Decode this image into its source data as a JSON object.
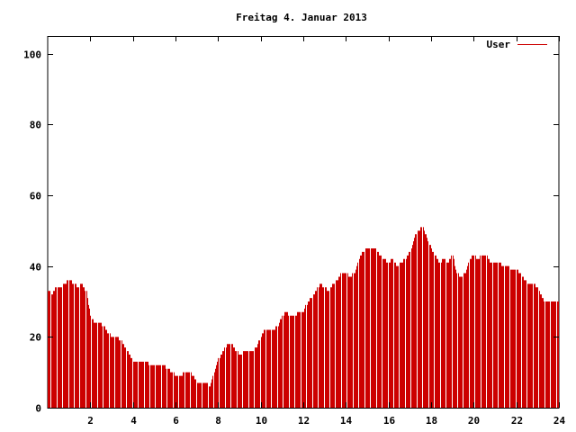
{
  "chart_data": {
    "type": "bar",
    "title": "Freitag 4. Januar 2013",
    "xlabel": "",
    "ylabel": "",
    "xlim": [
      0,
      24
    ],
    "ylim": [
      0,
      105
    ],
    "x_ticks": [
      2,
      4,
      6,
      8,
      10,
      12,
      14,
      16,
      18,
      20,
      22,
      24
    ],
    "y_ticks": [
      0,
      20,
      40,
      60,
      80,
      100
    ],
    "grid": false,
    "legend_position": "top-right",
    "series": [
      {
        "name": "User",
        "color": "#cc0000",
        "points": [
          [
            0.0,
            33
          ],
          [
            0.2,
            32
          ],
          [
            0.4,
            34
          ],
          [
            0.6,
            34
          ],
          [
            0.8,
            35
          ],
          [
            1.0,
            36
          ],
          [
            1.2,
            35
          ],
          [
            1.4,
            34
          ],
          [
            1.6,
            35
          ],
          [
            1.8,
            33
          ],
          [
            2.0,
            26
          ],
          [
            2.2,
            24
          ],
          [
            2.4,
            24
          ],
          [
            2.6,
            23
          ],
          [
            2.8,
            21
          ],
          [
            3.0,
            20
          ],
          [
            3.2,
            20
          ],
          [
            3.4,
            19
          ],
          [
            3.6,
            17
          ],
          [
            3.8,
            15
          ],
          [
            4.0,
            13
          ],
          [
            4.2,
            13
          ],
          [
            4.4,
            13
          ],
          [
            4.6,
            13
          ],
          [
            4.8,
            12
          ],
          [
            5.0,
            12
          ],
          [
            5.2,
            12
          ],
          [
            5.4,
            12
          ],
          [
            5.6,
            11
          ],
          [
            5.8,
            10
          ],
          [
            6.0,
            9
          ],
          [
            6.2,
            9
          ],
          [
            6.4,
            10
          ],
          [
            6.6,
            10
          ],
          [
            6.8,
            9
          ],
          [
            7.0,
            7
          ],
          [
            7.2,
            7
          ],
          [
            7.4,
            7
          ],
          [
            7.6,
            6
          ],
          [
            7.8,
            10
          ],
          [
            8.0,
            14
          ],
          [
            8.2,
            16
          ],
          [
            8.4,
            18
          ],
          [
            8.6,
            18
          ],
          [
            8.8,
            16
          ],
          [
            9.0,
            15
          ],
          [
            9.2,
            16
          ],
          [
            9.4,
            16
          ],
          [
            9.6,
            16
          ],
          [
            9.8,
            17
          ],
          [
            10.0,
            20
          ],
          [
            10.2,
            22
          ],
          [
            10.4,
            22
          ],
          [
            10.6,
            22
          ],
          [
            10.8,
            23
          ],
          [
            11.0,
            26
          ],
          [
            11.2,
            27
          ],
          [
            11.4,
            26
          ],
          [
            11.6,
            26
          ],
          [
            11.8,
            27
          ],
          [
            12.0,
            27
          ],
          [
            12.2,
            30
          ],
          [
            12.4,
            31
          ],
          [
            12.6,
            33
          ],
          [
            12.8,
            35
          ],
          [
            13.0,
            34
          ],
          [
            13.2,
            33
          ],
          [
            13.4,
            35
          ],
          [
            13.6,
            36
          ],
          [
            13.8,
            38
          ],
          [
            14.0,
            38
          ],
          [
            14.2,
            37
          ],
          [
            14.4,
            38
          ],
          [
            14.6,
            42
          ],
          [
            14.8,
            44
          ],
          [
            15.0,
            45
          ],
          [
            15.2,
            45
          ],
          [
            15.4,
            45
          ],
          [
            15.6,
            43
          ],
          [
            15.8,
            42
          ],
          [
            16.0,
            41
          ],
          [
            16.2,
            42
          ],
          [
            16.4,
            40
          ],
          [
            16.6,
            41
          ],
          [
            16.8,
            42
          ],
          [
            17.0,
            44
          ],
          [
            17.2,
            48
          ],
          [
            17.4,
            50
          ],
          [
            17.6,
            51
          ],
          [
            17.8,
            48
          ],
          [
            18.0,
            45
          ],
          [
            18.2,
            43
          ],
          [
            18.4,
            41
          ],
          [
            18.6,
            42
          ],
          [
            18.8,
            41
          ],
          [
            19.0,
            43
          ],
          [
            19.2,
            38
          ],
          [
            19.4,
            37
          ],
          [
            19.6,
            38
          ],
          [
            19.8,
            42
          ],
          [
            20.0,
            43
          ],
          [
            20.2,
            42
          ],
          [
            20.4,
            43
          ],
          [
            20.6,
            43
          ],
          [
            20.8,
            41
          ],
          [
            21.0,
            41
          ],
          [
            21.2,
            41
          ],
          [
            21.4,
            40
          ],
          [
            21.6,
            40
          ],
          [
            21.8,
            39
          ],
          [
            22.0,
            39
          ],
          [
            22.2,
            38
          ],
          [
            22.4,
            36
          ],
          [
            22.6,
            35
          ],
          [
            22.8,
            35
          ],
          [
            23.0,
            34
          ],
          [
            23.2,
            31
          ],
          [
            23.4,
            30
          ],
          [
            23.6,
            30
          ],
          [
            23.8,
            30
          ]
        ]
      }
    ]
  }
}
